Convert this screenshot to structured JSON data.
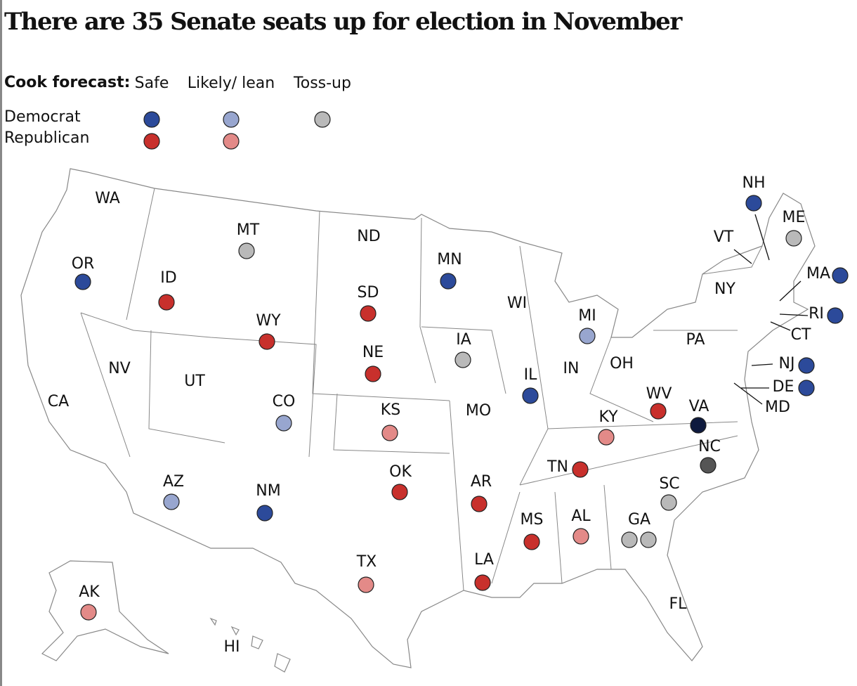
{
  "title": "There are 35 Senate seats up for election in November",
  "legend": {
    "label": "Cook forecast:",
    "columns": [
      "Safe",
      "Likely/ lean",
      "Toss-up"
    ],
    "rows": [
      {
        "name": "Democrat",
        "colors": [
          "#2c4a9a",
          "#98a6cf",
          "#b9b9b9"
        ]
      },
      {
        "name": "Republican",
        "colors": [
          "#c8302c",
          "#e38a88"
        ]
      }
    ]
  },
  "states": [
    {
      "label": "WA"
    },
    {
      "label": "OR",
      "dots": [
        "#2c4a9a"
      ]
    },
    {
      "label": "CA"
    },
    {
      "label": "NV"
    },
    {
      "label": "ID",
      "dots": [
        "#c8302c"
      ]
    },
    {
      "label": "MT",
      "dots": [
        "#b9b9b9"
      ]
    },
    {
      "label": "WY",
      "dots": [
        "#c8302c"
      ]
    },
    {
      "label": "UT"
    },
    {
      "label": "CO",
      "dots": [
        "#98a6cf"
      ]
    },
    {
      "label": "AZ",
      "dots": [
        "#98a6cf"
      ]
    },
    {
      "label": "NM",
      "dots": [
        "#2c4a9a"
      ]
    },
    {
      "label": "ND"
    },
    {
      "label": "SD",
      "dots": [
        "#c8302c"
      ]
    },
    {
      "label": "NE",
      "dots": [
        "#c8302c"
      ]
    },
    {
      "label": "KS",
      "dots": [
        "#e38a88"
      ]
    },
    {
      "label": "OK",
      "dots": [
        "#c8302c"
      ]
    },
    {
      "label": "TX",
      "dots": [
        "#e38a88"
      ]
    },
    {
      "label": "MN",
      "dots": [
        "#2c4a9a"
      ]
    },
    {
      "label": "IA",
      "dots": [
        "#b9b9b9"
      ]
    },
    {
      "label": "MO"
    },
    {
      "label": "AR",
      "dots": [
        "#c8302c"
      ]
    },
    {
      "label": "LA",
      "dots": [
        "#c8302c"
      ]
    },
    {
      "label": "WI"
    },
    {
      "label": "IL",
      "dots": [
        "#2c4a9a"
      ]
    },
    {
      "label": "MI",
      "dots": [
        "#98a6cf"
      ]
    },
    {
      "label": "IN"
    },
    {
      "label": "OH"
    },
    {
      "label": "KY",
      "dots": [
        "#e38a88"
      ]
    },
    {
      "label": "TN",
      "dots": [
        "#c8302c"
      ]
    },
    {
      "label": "MS",
      "dots": [
        "#c8302c"
      ]
    },
    {
      "label": "AL",
      "dots": [
        "#e38a88"
      ]
    },
    {
      "label": "GA",
      "dots": [
        "#b9b9b9",
        "#b9b9b9"
      ]
    },
    {
      "label": "FL"
    },
    {
      "label": "SC",
      "dots": [
        "#b9b9b9"
      ]
    },
    {
      "label": "NC",
      "dots": [
        "#555555"
      ]
    },
    {
      "label": "VA",
      "dots": [
        "#0e1a3e"
      ]
    },
    {
      "label": "WV",
      "dots": [
        "#c8302c"
      ]
    },
    {
      "label": "PA"
    },
    {
      "label": "NY"
    },
    {
      "label": "VT"
    },
    {
      "label": "NH",
      "dots": [
        "#2c4a9a"
      ]
    },
    {
      "label": "ME",
      "dots": [
        "#b9b9b9"
      ]
    },
    {
      "label": "MA",
      "dots": [
        "#2c4a9a"
      ]
    },
    {
      "label": "RI",
      "dots": [
        "#2c4a9a"
      ]
    },
    {
      "label": "CT"
    },
    {
      "label": "NJ",
      "dots": [
        "#2c4a9a"
      ]
    },
    {
      "label": "DE",
      "dots": [
        "#2c4a9a"
      ]
    },
    {
      "label": "MD"
    },
    {
      "label": "AK",
      "dots": [
        "#e38a88"
      ]
    },
    {
      "label": "HI"
    }
  ]
}
